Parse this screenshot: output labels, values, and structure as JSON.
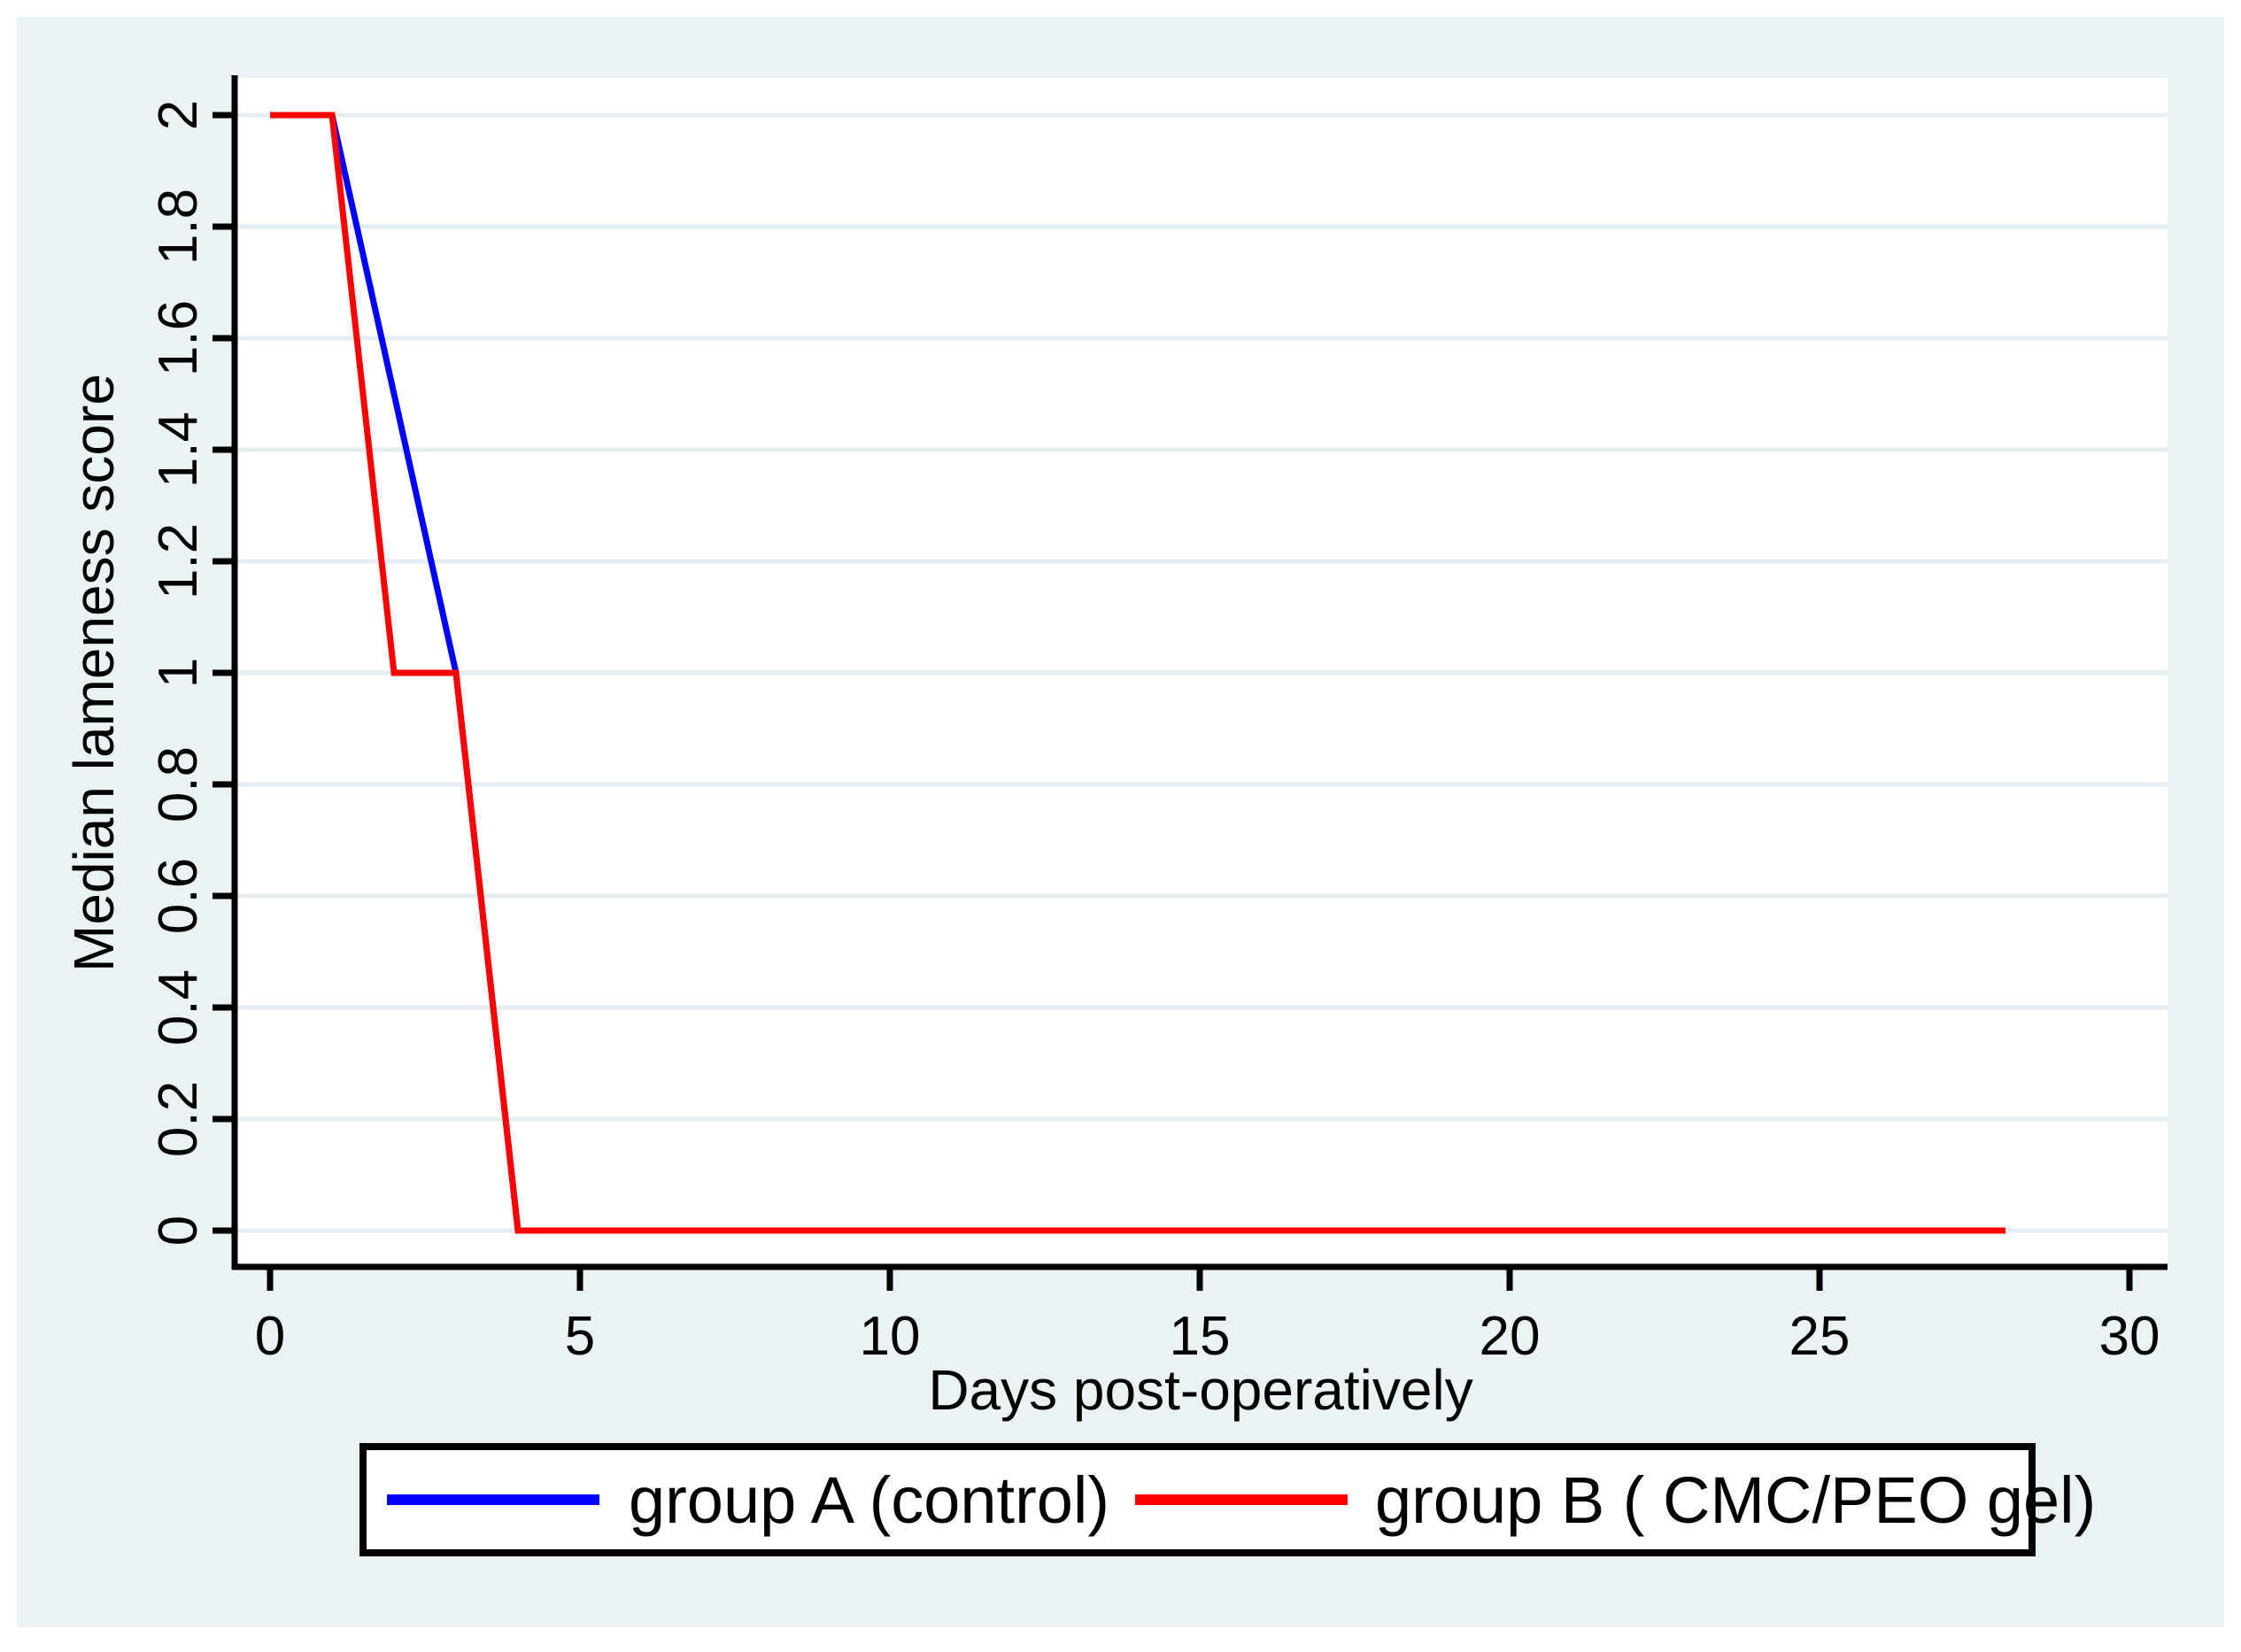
{
  "colors": {
    "background": "#eaf2f3",
    "plot_background": "#ffffff",
    "grid": "#e4eef0",
    "axis": "#000000",
    "text": "#000000",
    "legend_background": "#ffffff",
    "legend_border": "#000000",
    "group_a": "#0000ff",
    "group_b": "#ff0000"
  },
  "chart_data": {
    "type": "line",
    "title": "",
    "xlabel": "Days post-operatively",
    "ylabel": "Median lameness score",
    "xlim": [
      0,
      30
    ],
    "ylim": [
      0,
      2
    ],
    "xticks": [
      0,
      5,
      10,
      15,
      20,
      25,
      30
    ],
    "xtick_labels": [
      "0",
      "5",
      "10",
      "15",
      "20",
      "25",
      "30"
    ],
    "yticks": [
      0,
      0.2,
      0.4,
      0.6,
      0.8,
      1,
      1.2,
      1.4,
      1.6,
      1.8,
      2
    ],
    "ytick_labels": [
      "0",
      "0.2",
      "0.4",
      "0.6",
      "0.8",
      "1",
      "1.2",
      "1.4",
      "1.6",
      "1.8",
      "2"
    ],
    "grid": "horizontal",
    "legend_position": "bottom",
    "series": [
      {
        "name": "group A (control)",
        "color": "#0000ff",
        "x": [
          0,
          1,
          3,
          4,
          28
        ],
        "y": [
          2,
          2,
          1,
          0,
          0
        ]
      },
      {
        "name": "group B ( CMC/PEO gel)",
        "color": "#ff0000",
        "x": [
          0,
          1,
          2,
          3,
          4,
          28
        ],
        "y": [
          2,
          2,
          1,
          1,
          0,
          0
        ]
      }
    ]
  },
  "legend": {
    "items": [
      {
        "label": "group A (control)",
        "color": "#0000ff"
      },
      {
        "label": "group B ( CMC/PEO gel)",
        "color": "#ff0000"
      }
    ]
  }
}
